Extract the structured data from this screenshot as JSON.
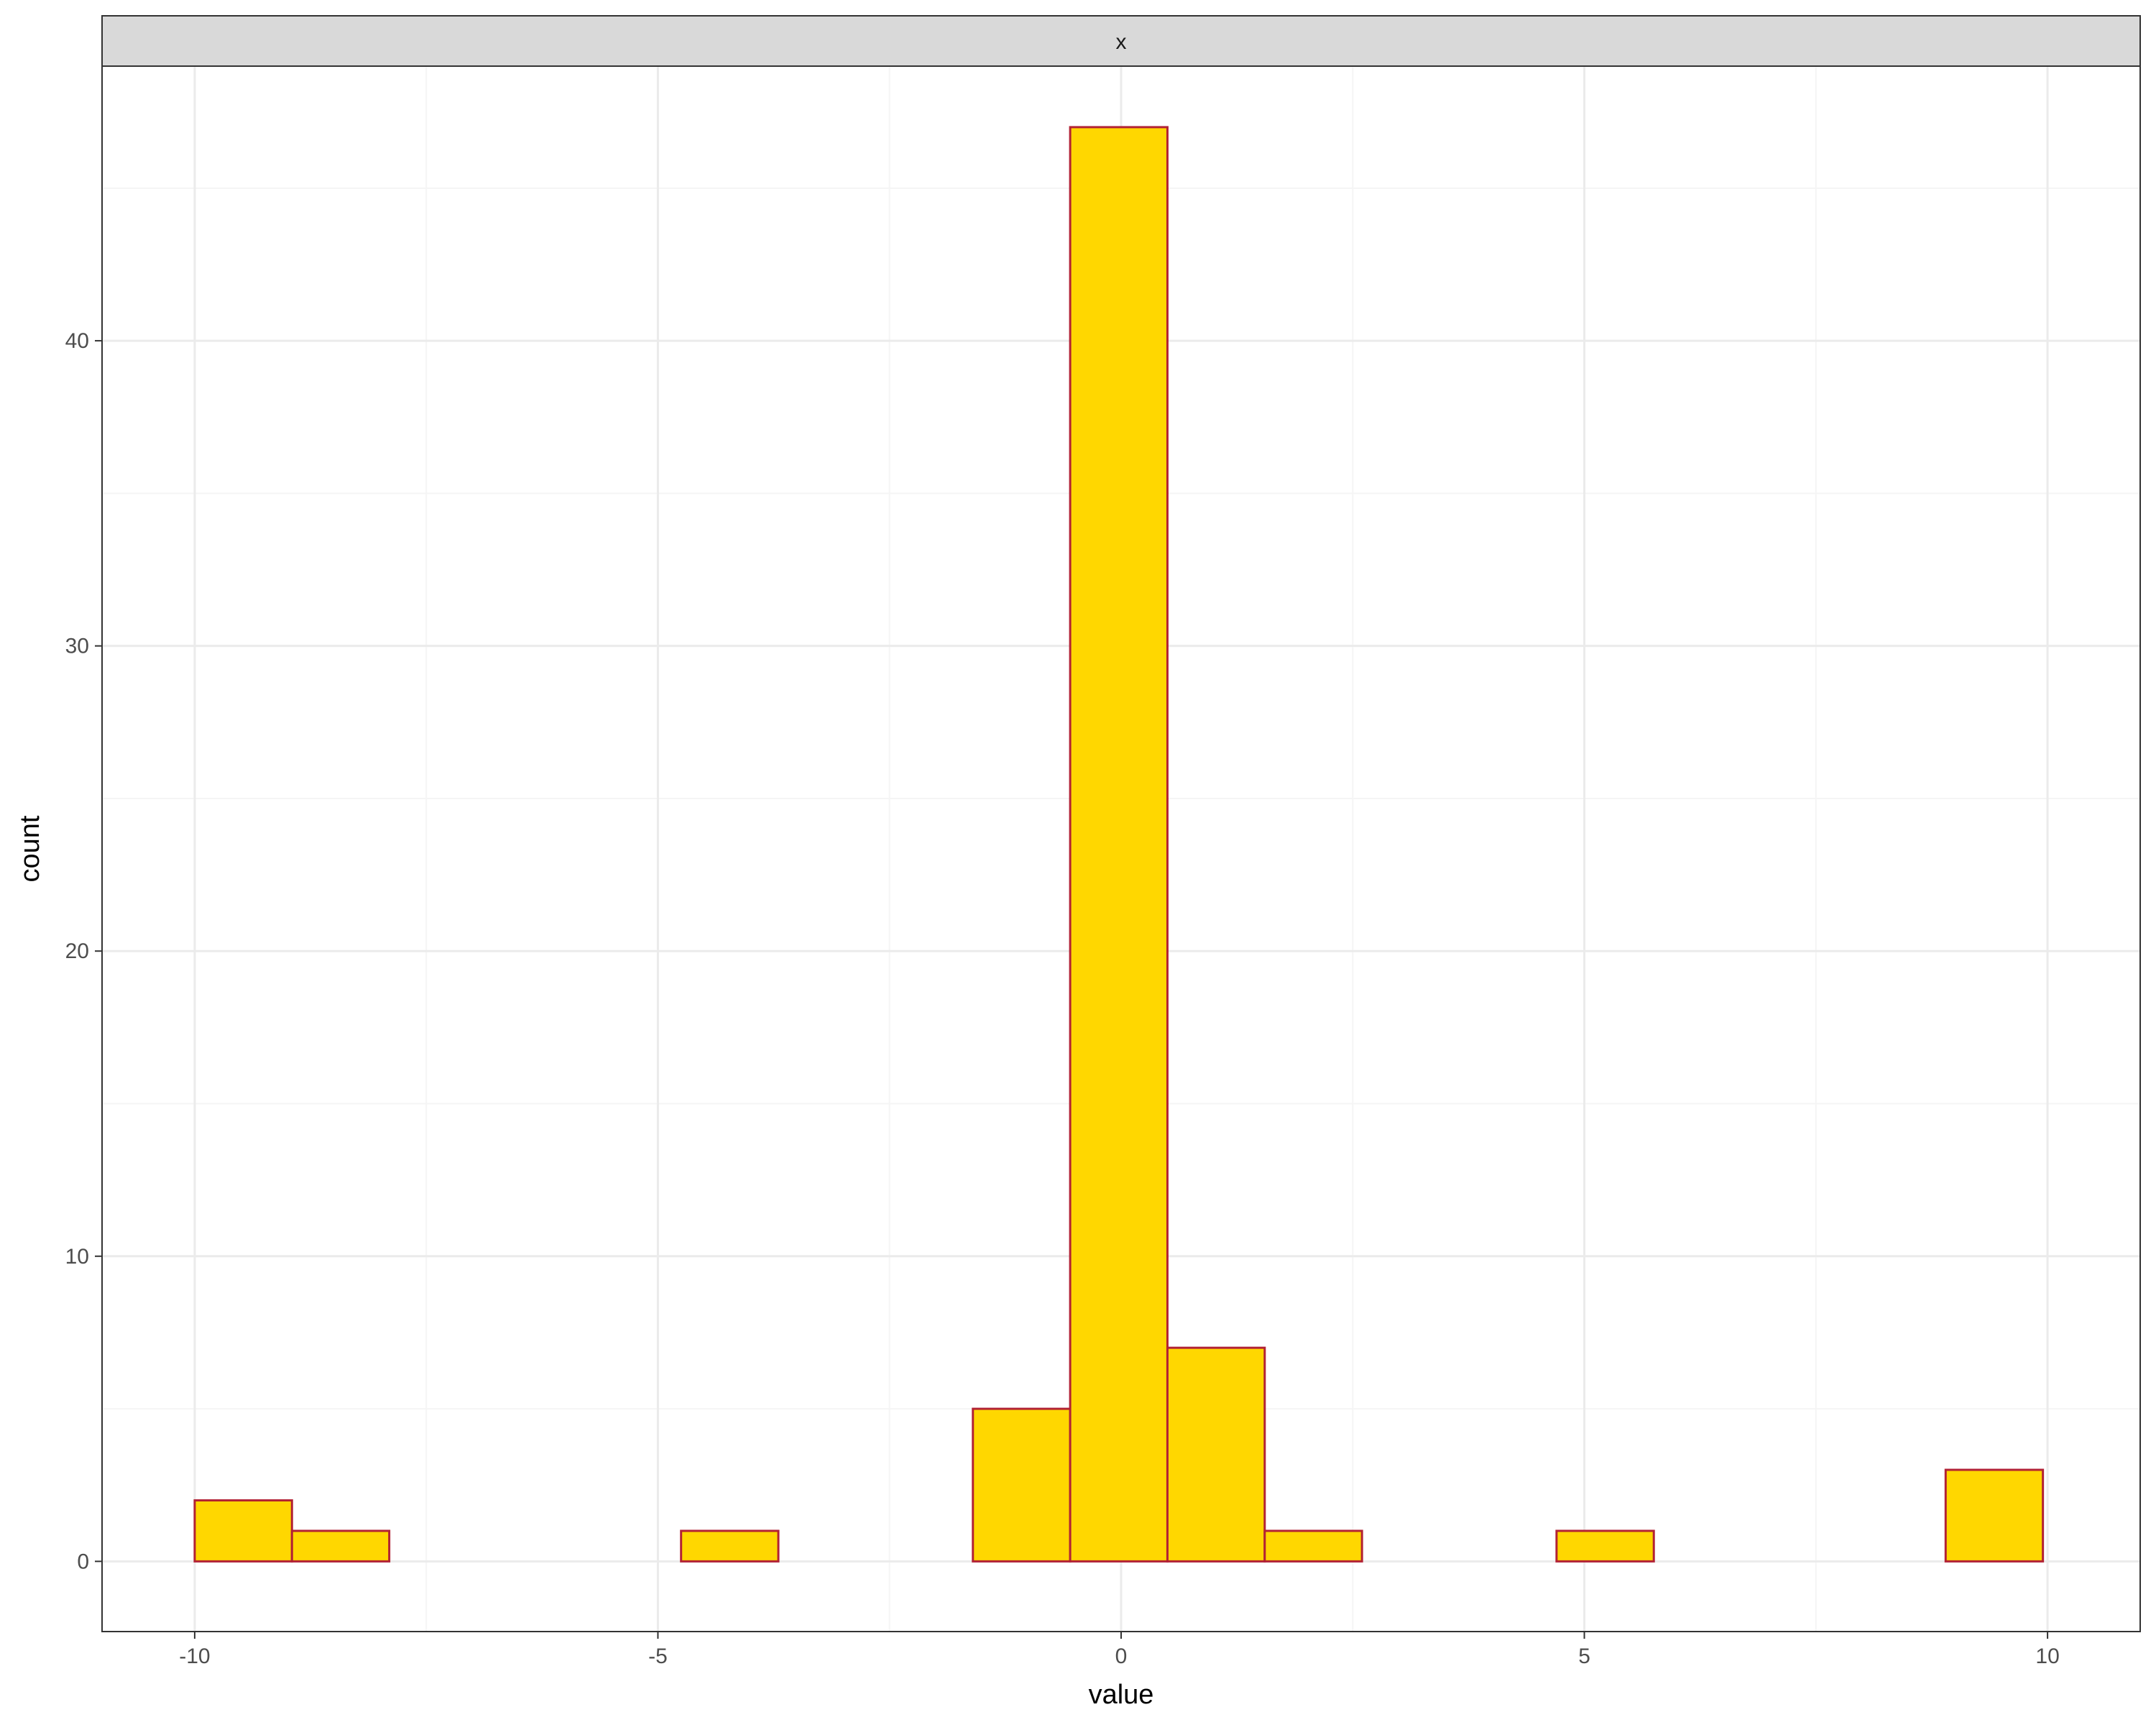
{
  "chart_data": {
    "type": "bar",
    "facet_label": "x",
    "xlabel": "value",
    "ylabel": "count",
    "xlim": [
      -11,
      11
    ],
    "ylim": [
      -2.3,
      49
    ],
    "x_ticks": [
      -10,
      -5,
      0,
      5,
      10
    ],
    "y_ticks": [
      0,
      10,
      20,
      30,
      40
    ],
    "bin_width": 1.05,
    "bins": [
      {
        "center": -9.475,
        "count": 2
      },
      {
        "center": -8.425,
        "count": 1
      },
      {
        "center": -7.375,
        "count": 0
      },
      {
        "center": -6.325,
        "count": 0
      },
      {
        "center": -5.275,
        "count": 0
      },
      {
        "center": -4.225,
        "count": 1
      },
      {
        "center": -3.175,
        "count": 0
      },
      {
        "center": -2.125,
        "count": 0
      },
      {
        "center": -1.075,
        "count": 5
      },
      {
        "center": -0.025,
        "count": 47
      },
      {
        "center": 1.025,
        "count": 7
      },
      {
        "center": 2.075,
        "count": 1
      },
      {
        "center": 3.125,
        "count": 0
      },
      {
        "center": 4.175,
        "count": 0
      },
      {
        "center": 5.225,
        "count": 1
      },
      {
        "center": 6.275,
        "count": 0
      },
      {
        "center": 7.325,
        "count": 0
      },
      {
        "center": 8.375,
        "count": 0
      },
      {
        "center": 9.425,
        "count": 3
      }
    ],
    "grid": true,
    "colors": {
      "bar_fill": "#FFD700",
      "bar_outline": "#B22234",
      "grid_major": "#EBEBEB",
      "grid_minor": "#F5F5F5",
      "strip_fill": "#D9D9D9",
      "panel_border": "#333333"
    }
  }
}
